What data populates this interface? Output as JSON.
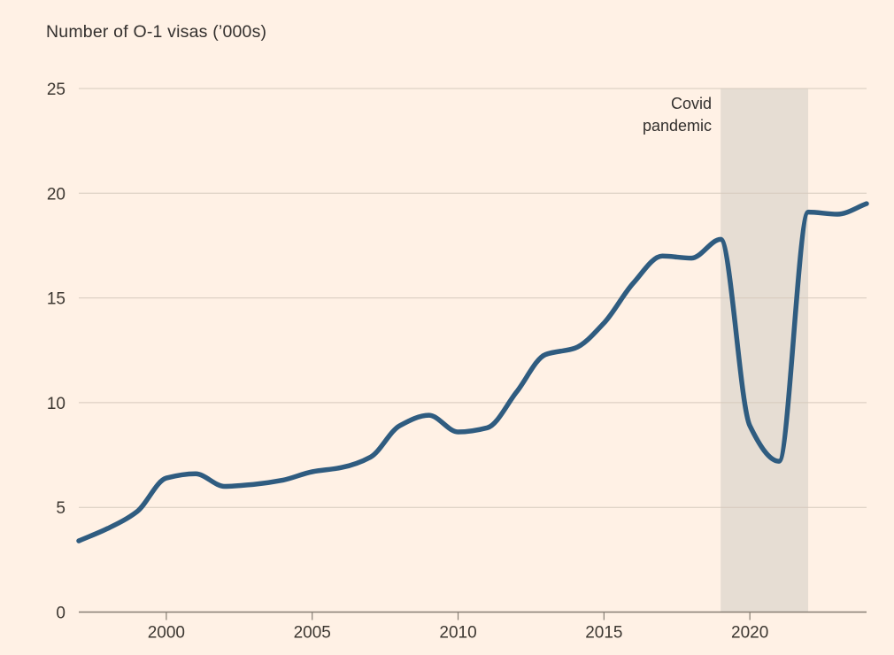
{
  "page": {
    "background": "#FFF1E5"
  },
  "chart_data": {
    "type": "line",
    "title": "Number of O-1 visas (’000s)",
    "xlabel": "",
    "ylabel": "",
    "x": [
      1997,
      1998,
      1999,
      2000,
      2001,
      2002,
      2003,
      2004,
      2005,
      2006,
      2007,
      2008,
      2009,
      2010,
      2011,
      2012,
      2013,
      2014,
      2015,
      2016,
      2017,
      2018,
      2019,
      2020,
      2021,
      2022,
      2023,
      2024
    ],
    "series": [
      {
        "name": "O-1 visas issued (thousands)",
        "values": [
          3.4,
          4.0,
          4.8,
          6.4,
          6.6,
          6.0,
          6.1,
          6.3,
          6.7,
          6.9,
          7.4,
          8.9,
          9.4,
          8.6,
          8.8,
          10.5,
          12.3,
          12.6,
          13.8,
          15.7,
          17.0,
          16.9,
          17.8,
          8.9,
          7.2,
          19.1,
          19.0,
          19.5
        ]
      }
    ],
    "xlim": [
      1997,
      2024
    ],
    "ylim": [
      0,
      25
    ],
    "yticks": [
      "0",
      "5",
      "10",
      "15",
      "20",
      "25"
    ],
    "ytick_values": [
      0,
      5,
      10,
      15,
      20,
      25
    ],
    "xticks": [
      "2000",
      "2005",
      "2010",
      "2015",
      "2020"
    ],
    "xtick_values": [
      2000,
      2005,
      2010,
      2015,
      2020
    ],
    "grid": "horizontal",
    "legend": "none",
    "annotation": {
      "lines": [
        "Covid",
        "pandemic"
      ],
      "band": {
        "from": 2019,
        "to": 2022,
        "color": "#E6DDD3"
      }
    },
    "colors": {
      "line": "#2F5C80",
      "grid": "#D6CABD",
      "axis": "#877E74",
      "text": "#3C3731",
      "title_text": "#33302E"
    }
  }
}
